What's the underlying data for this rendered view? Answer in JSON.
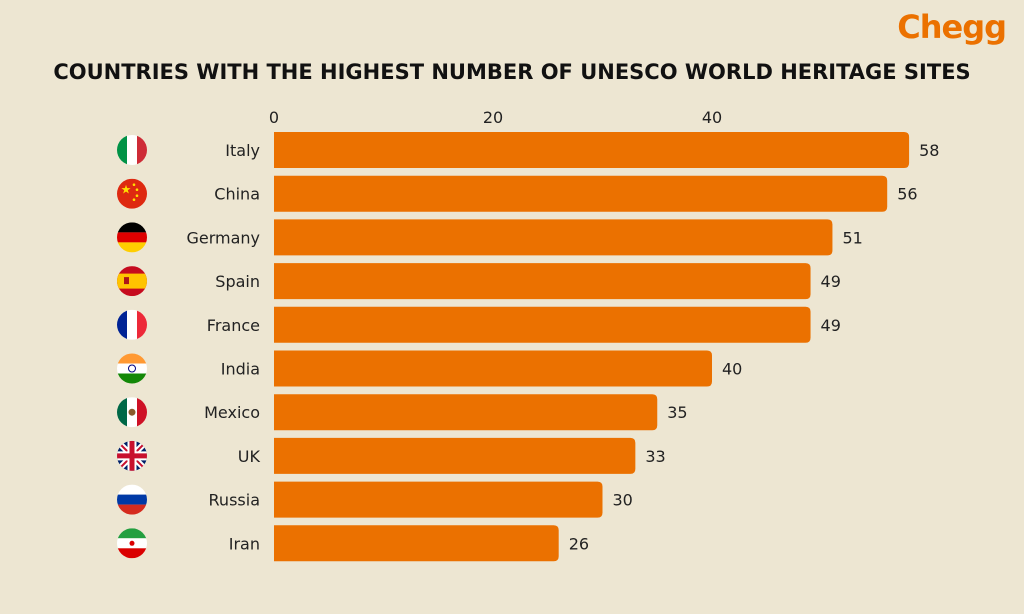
{
  "brand": {
    "name": "Chegg",
    "color": "#eb7100"
  },
  "chart_data": {
    "type": "bar",
    "orientation": "horizontal",
    "title": "COUNTRIES WITH THE HIGHEST NUMBER OF UNESCO WORLD HERITAGE SITES",
    "xlabel": "",
    "ylabel": "",
    "xlim": [
      0,
      60
    ],
    "xticks": [
      0,
      20,
      40
    ],
    "xaxis_position": "top",
    "grid": false,
    "bar_color": "#eb7100",
    "categories": [
      "Italy",
      "China",
      "Germany",
      "Spain",
      "France",
      "India",
      "Mexico",
      "UK",
      "Russia",
      "Iran"
    ],
    "values": [
      58,
      56,
      51,
      49,
      49,
      40,
      35,
      33,
      30,
      26
    ],
    "flag_icons": [
      "italy-flag-icon",
      "china-flag-icon",
      "germany-flag-icon",
      "spain-flag-icon",
      "france-flag-icon",
      "india-flag-icon",
      "mexico-flag-icon",
      "uk-flag-icon",
      "russia-flag-icon",
      "iran-flag-icon"
    ]
  }
}
